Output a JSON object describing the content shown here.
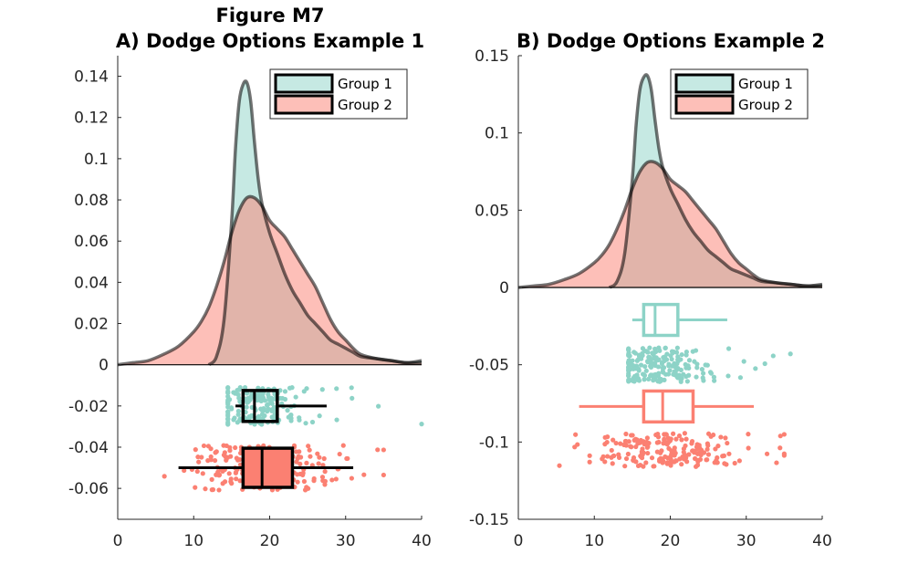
{
  "figure": {
    "title": "Figure M7",
    "colors": {
      "group1": "#8dd3c7",
      "group2": "#fb8072",
      "axis": "#262626",
      "outline": "#000000"
    }
  },
  "chart_data": [
    {
      "type": "raincloud",
      "title": "A) Dodge Options Example 1",
      "xlabel": "",
      "ylabel": "",
      "xlim": [
        0,
        40
      ],
      "ylim": [
        -0.075,
        0.15
      ],
      "xticks": [
        "0",
        "10",
        "20",
        "30",
        "40"
      ],
      "yticks": [
        {
          "v": 0.14,
          "label": "0.14"
        },
        {
          "v": 0.12,
          "label": "0.12"
        },
        {
          "v": 0.1,
          "label": "0.1"
        },
        {
          "v": 0.08,
          "label": "0.08"
        },
        {
          "v": 0.06,
          "label": "0.06"
        },
        {
          "v": 0.04,
          "label": "0.04"
        },
        {
          "v": 0.02,
          "label": "0.02"
        },
        {
          "v": 0,
          "label": "0"
        },
        {
          "v": -0.02,
          "label": "-0.02"
        },
        {
          "v": -0.04,
          "label": "-0.04"
        },
        {
          "v": -0.06,
          "label": "-0.06"
        }
      ],
      "legend": {
        "position": "top-right",
        "entries": [
          "Group 1",
          "Group 2"
        ]
      },
      "series": [
        {
          "name": "Group 1",
          "color": "#8dd3c7",
          "density": {
            "x": [
              12,
              13,
              14,
              15,
              15.5,
              16,
              16.5,
              17,
              17.5,
              18,
              18.5,
              19,
              20,
              21,
              22,
              23,
              24,
              25,
              26,
              27,
              28,
              29,
              30,
              31,
              32,
              34,
              36,
              38,
              40
            ],
            "y": [
              0,
              0.004,
              0.022,
              0.07,
              0.105,
              0.128,
              0.136,
              0.137,
              0.128,
              0.108,
              0.09,
              0.078,
              0.064,
              0.054,
              0.044,
              0.036,
              0.03,
              0.024,
              0.02,
              0.016,
              0.012,
              0.01,
              0.008,
              0.006,
              0.004,
              0.003,
              0.002,
              0.001,
              0.002
            ]
          },
          "box": {
            "q1": 16.5,
            "median": 18,
            "q3": 21,
            "whisker_low": 15.5,
            "whisker_high": 27.5,
            "center": -0.02,
            "half_height": 0.0075,
            "filled": false
          },
          "rain": {
            "center": -0.02,
            "spread": 0.009,
            "n": 180,
            "min": 14.5,
            "max": 40
          }
        },
        {
          "name": "Group 2",
          "color": "#fb8072",
          "density": {
            "x": [
              0,
              2,
              4,
              6,
              8,
              10,
              11,
              12,
              13,
              14,
              15,
              16,
              17,
              18,
              19,
              20,
              21,
              22,
              23,
              24,
              25,
              26,
              27,
              28,
              29,
              30,
              31,
              32,
              34,
              36,
              38,
              40
            ],
            "y": [
              0,
              0.001,
              0.002,
              0.005,
              0.009,
              0.016,
              0.021,
              0.028,
              0.038,
              0.05,
              0.064,
              0.075,
              0.081,
              0.081,
              0.077,
              0.07,
              0.066,
              0.062,
              0.056,
              0.05,
              0.044,
              0.038,
              0.03,
              0.022,
              0.016,
              0.012,
              0.008,
              0.005,
              0.003,
              0.002,
              0.001,
              0.001
            ]
          },
          "box": {
            "q1": 16.5,
            "median": 19,
            "q3": 23,
            "whisker_low": 8,
            "whisker_high": 31,
            "center": -0.05,
            "half_height": 0.0095,
            "filled": true
          },
          "rain": {
            "center": -0.05,
            "spread": 0.011,
            "n": 200,
            "min": 4,
            "max": 35
          }
        }
      ]
    },
    {
      "type": "raincloud",
      "title": "B) Dodge Options Example 2",
      "xlabel": "",
      "ylabel": "",
      "xlim": [
        0,
        40
      ],
      "ylim": [
        -0.15,
        0.15
      ],
      "xticks": [
        "0",
        "10",
        "20",
        "30",
        "40"
      ],
      "yticks": [
        {
          "v": 0.15,
          "label": "0.15"
        },
        {
          "v": 0.1,
          "label": "0.1"
        },
        {
          "v": 0.05,
          "label": "0.05"
        },
        {
          "v": 0,
          "label": "0"
        },
        {
          "v": -0.05,
          "label": "-0.05"
        },
        {
          "v": -0.1,
          "label": "-0.1"
        },
        {
          "v": -0.15,
          "label": "-0.15"
        }
      ],
      "legend": {
        "position": "top-right",
        "entries": [
          "Group 1",
          "Group 2"
        ]
      },
      "series": [
        {
          "name": "Group 1",
          "color": "#8dd3c7",
          "density": {
            "x": [
              12,
              13,
              14,
              15,
              15.5,
              16,
              16.5,
              17,
              17.5,
              18,
              18.5,
              19,
              20,
              21,
              22,
              23,
              24,
              25,
              26,
              27,
              28,
              29,
              30,
              31,
              32,
              34,
              36,
              38,
              40
            ],
            "y": [
              0,
              0.004,
              0.022,
              0.07,
              0.105,
              0.128,
              0.136,
              0.137,
              0.128,
              0.108,
              0.09,
              0.078,
              0.064,
              0.054,
              0.044,
              0.036,
              0.03,
              0.024,
              0.02,
              0.016,
              0.012,
              0.01,
              0.008,
              0.006,
              0.004,
              0.003,
              0.002,
              0.001,
              0.002
            ]
          },
          "box": {
            "q1": 16.5,
            "median": 18,
            "q3": 21,
            "whisker_low": 15,
            "whisker_high": 27.5,
            "center": -0.021,
            "half_height": 0.01,
            "filled": false
          },
          "rain": {
            "center": -0.05,
            "spread": 0.011,
            "n": 200,
            "min": 14.5,
            "max": 40
          }
        },
        {
          "name": "Group 2",
          "color": "#fb8072",
          "density": {
            "x": [
              0,
              2,
              4,
              6,
              8,
              10,
              11,
              12,
              13,
              14,
              15,
              16,
              17,
              18,
              19,
              20,
              21,
              22,
              23,
              24,
              25,
              26,
              27,
              28,
              29,
              30,
              31,
              32,
              34,
              36,
              38,
              40
            ],
            "y": [
              0,
              0.001,
              0.002,
              0.005,
              0.009,
              0.016,
              0.021,
              0.028,
              0.038,
              0.05,
              0.064,
              0.075,
              0.081,
              0.081,
              0.077,
              0.07,
              0.066,
              0.062,
              0.056,
              0.05,
              0.044,
              0.038,
              0.03,
              0.022,
              0.016,
              0.012,
              0.008,
              0.005,
              0.003,
              0.002,
              0.001,
              0.001
            ]
          },
          "box": {
            "q1": 16.5,
            "median": 19,
            "q3": 23,
            "whisker_low": 8,
            "whisker_high": 31,
            "center": -0.077,
            "half_height": 0.01,
            "filled": false
          },
          "rain": {
            "center": -0.105,
            "spread": 0.011,
            "n": 200,
            "min": 4,
            "max": 35
          }
        }
      ]
    }
  ]
}
